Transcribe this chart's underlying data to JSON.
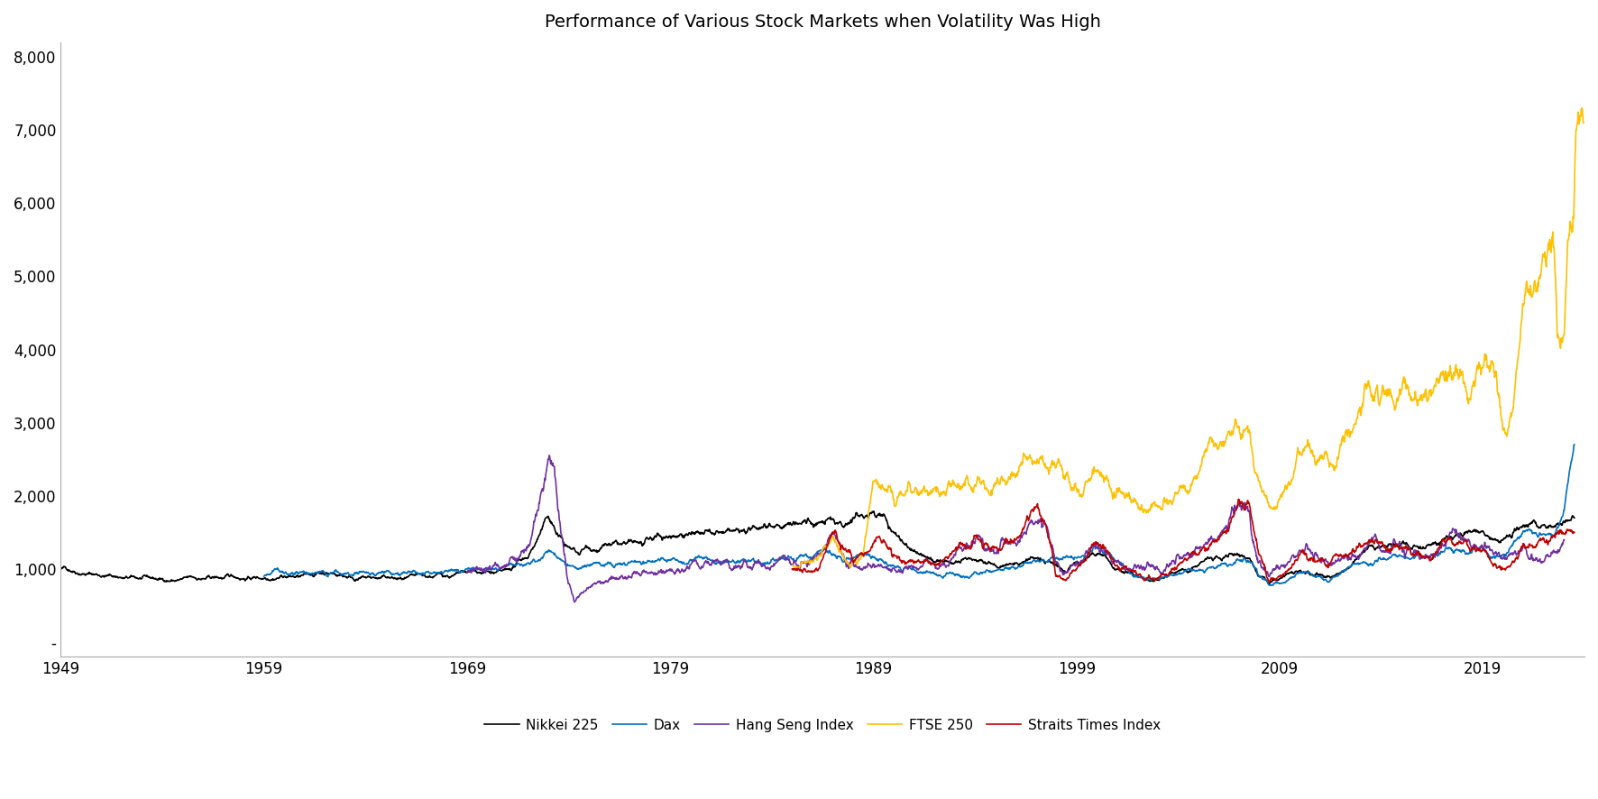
{
  "title": "Performance of Various Stock Markets when Volatility Was High",
  "xlim": [
    1949,
    2024
  ],
  "ylim": [
    -200,
    8200
  ],
  "yticks": [
    0,
    1000,
    2000,
    3000,
    4000,
    5000,
    6000,
    7000,
    8000
  ],
  "ytick_labels": [
    "-",
    "1,000",
    "2,000",
    "3,000",
    "4,000",
    "5,000",
    "6,000",
    "7,000",
    "8,000"
  ],
  "xticks": [
    1949,
    1959,
    1969,
    1979,
    1989,
    1999,
    2009,
    2019
  ],
  "series_order": [
    "Nikkei 225",
    "Dax",
    "Hang Seng Index",
    "FTSE 250",
    "Straits Times Index"
  ],
  "colors": {
    "Nikkei 225": "#000000",
    "Dax": "#0070C0",
    "Hang Seng Index": "#7030A0",
    "FTSE 250": "#FFC000",
    "Straits Times Index": "#C00000"
  },
  "linewidth": 1.2,
  "legend_fontsize": 11,
  "title_fontsize": 14
}
